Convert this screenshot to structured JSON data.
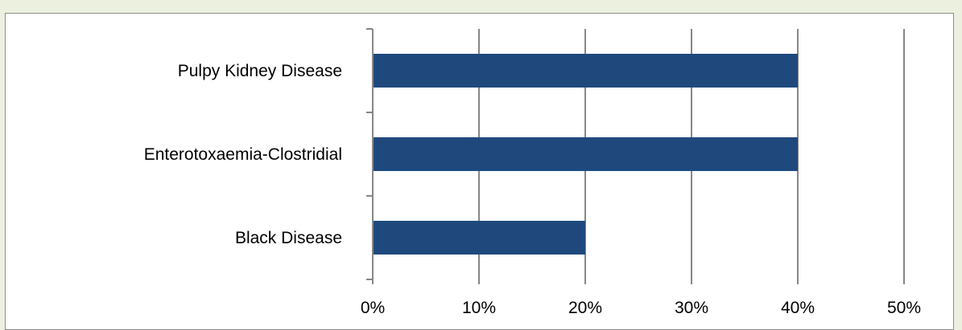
{
  "chart_data": {
    "type": "bar",
    "orientation": "horizontal",
    "categories": [
      "Pulpy Kidney Disease",
      "Enterotoxaemia-Clostridial",
      "Black Disease"
    ],
    "values": [
      40,
      40,
      20
    ],
    "value_unit": "%",
    "xlim": [
      0,
      50
    ],
    "x_ticks": [
      "0%",
      "10%",
      "20%",
      "30%",
      "40%",
      "50%"
    ],
    "title": "",
    "xlabel": "",
    "ylabel": "",
    "grid": "vertical",
    "legend": "none",
    "bar_color": "#1f497d",
    "gridline_color": "#878787",
    "background_color": "#ebf1de"
  }
}
